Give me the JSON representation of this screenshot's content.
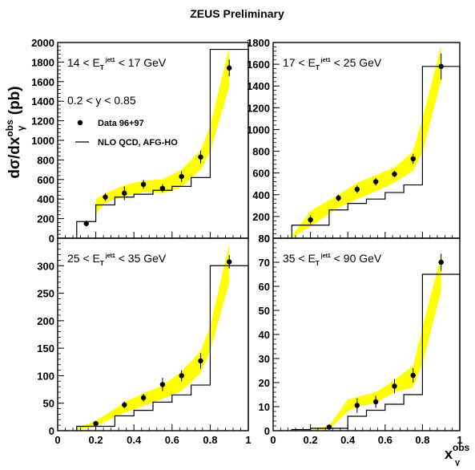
{
  "page": {
    "title": "ZEUS Preliminary",
    "ylabel_main": "dσ/dx",
    "ylabel_sup": "obs",
    "ylabel_sub": "γ",
    "ylabel_unit": " (pb)",
    "xlabel_main": "x",
    "xlabel_sup": "obs",
    "xlabel_sub": "γ",
    "legend": {
      "y_range": "0.2 < y < 0.85",
      "data_label": "Data 96+97",
      "nlo_label": "NLO QCD, AFG-HO"
    }
  },
  "chart_data": [
    {
      "type": "line",
      "panel": "top-left",
      "et_lo": "14 < E",
      "et_sub": "T",
      "et_sup": "jet1",
      "et_hi": " < 17 GeV",
      "xlim": [
        0,
        1
      ],
      "ylim": [
        0,
        2000
      ],
      "xticks": [],
      "yticks": [
        0,
        200,
        400,
        600,
        800,
        1000,
        1200,
        1400,
        1600,
        1800,
        2000
      ],
      "data": {
        "x": [
          0.15,
          0.25,
          0.35,
          0.45,
          0.55,
          0.65,
          0.75,
          0.9
        ],
        "y": [
          150,
          420,
          460,
          550,
          510,
          630,
          830,
          1740
        ],
        "err": [
          30,
          40,
          70,
          45,
          40,
          55,
          65,
          85
        ]
      },
      "nlo_hist": {
        "edges": [
          0.1,
          0.2,
          0.3,
          0.4,
          0.5,
          0.6,
          0.7,
          0.8,
          1.0
        ],
        "values": [
          170,
          340,
          420,
          450,
          490,
          530,
          620,
          1930
        ]
      },
      "band": {
        "x": [
          0.2,
          0.25,
          0.35,
          0.45,
          0.55,
          0.65,
          0.75,
          0.8,
          0.9
        ],
        "lo": [
          250,
          360,
          430,
          470,
          460,
          520,
          700,
          880,
          1550
        ],
        "hi": [
          400,
          460,
          540,
          590,
          600,
          700,
          900,
          1150,
          1950
        ]
      }
    },
    {
      "type": "line",
      "panel": "top-right",
      "et_lo": "17 < E",
      "et_sub": "T",
      "et_sup": "jet1",
      "et_hi": " < 25 GeV",
      "xlim": [
        0,
        1
      ],
      "ylim": [
        0,
        1800
      ],
      "xticks": [],
      "yticks": [
        0,
        200,
        400,
        600,
        800,
        1000,
        1200,
        1400,
        1600,
        1800
      ],
      "data": {
        "x": [
          0.2,
          0.35,
          0.45,
          0.55,
          0.65,
          0.75,
          0.9
        ],
        "y": [
          170,
          370,
          450,
          520,
          590,
          730,
          1580
        ],
        "err": [
          40,
          30,
          35,
          35,
          30,
          45,
          120
        ]
      },
      "nlo_hist": {
        "edges": [
          0.1,
          0.2,
          0.3,
          0.4,
          0.5,
          0.6,
          0.7,
          0.8,
          1.0
        ],
        "values": [
          120,
          120,
          260,
          320,
          360,
          420,
          490,
          1580
        ]
      },
      "band": {
        "x": [
          0.1,
          0.2,
          0.35,
          0.45,
          0.55,
          0.65,
          0.75,
          0.8,
          0.9
        ],
        "lo": [
          0,
          110,
          280,
          360,
          430,
          510,
          620,
          790,
          1450
        ],
        "hi": [
          20,
          250,
          400,
          510,
          580,
          650,
          800,
          1100,
          1770
        ]
      }
    },
    {
      "type": "line",
      "panel": "bottom-left",
      "et_lo": "25 < E",
      "et_sub": "T",
      "et_sup": "jet1",
      "et_hi": " < 35 GeV",
      "xlim": [
        0,
        1
      ],
      "ylim": [
        0,
        350
      ],
      "xticks": [
        0,
        0.2,
        0.4,
        0.6,
        0.8,
        1
      ],
      "yticks": [
        0,
        50,
        100,
        150,
        200,
        250,
        300
      ],
      "data": {
        "x": [
          0.2,
          0.35,
          0.45,
          0.55,
          0.65,
          0.75,
          0.9
        ],
        "y": [
          13,
          47,
          60,
          84,
          100,
          127,
          307
        ],
        "err": [
          3,
          6,
          7,
          12,
          10,
          14,
          12
        ]
      },
      "nlo_hist": {
        "edges": [
          0.1,
          0.2,
          0.3,
          0.4,
          0.5,
          0.6,
          0.7,
          0.8,
          1.0
        ],
        "values": [
          8,
          8,
          27,
          37,
          52,
          65,
          83,
          300
        ]
      },
      "band": {
        "x": [
          0.1,
          0.2,
          0.3,
          0.35,
          0.45,
          0.55,
          0.65,
          0.75,
          0.8,
          0.9
        ],
        "lo": [
          2,
          8,
          25,
          32,
          45,
          58,
          72,
          105,
          145,
          270
        ],
        "hi": [
          5,
          18,
          40,
          52,
          68,
          82,
          108,
          145,
          190,
          340
        ]
      }
    },
    {
      "type": "line",
      "panel": "bottom-right",
      "et_lo": "35 < E",
      "et_sub": "T",
      "et_sup": "jet1",
      "et_hi": " < 90 GeV",
      "xlim": [
        0,
        1
      ],
      "ylim": [
        0,
        80
      ],
      "xticks": [
        0,
        0.2,
        0.4,
        0.6,
        0.8,
        1
      ],
      "yticks": [
        0,
        10,
        20,
        30,
        40,
        50,
        60,
        70,
        80
      ],
      "data": {
        "x": [
          0.3,
          0.45,
          0.55,
          0.65,
          0.75,
          0.9
        ],
        "y": [
          1.5,
          10.5,
          12,
          18.5,
          23,
          70
        ],
        "err": [
          0.5,
          3,
          2.5,
          3,
          3,
          3.5
        ]
      },
      "nlo_hist": {
        "edges": [
          0.1,
          0.2,
          0.3,
          0.4,
          0.5,
          0.6,
          0.7,
          0.8,
          1.0
        ],
        "values": [
          0.5,
          1,
          1,
          6,
          8.5,
          11,
          15,
          65
        ]
      },
      "band": {
        "x": [
          0.2,
          0.3,
          0.4,
          0.45,
          0.55,
          0.65,
          0.75,
          0.8,
          0.9
        ],
        "lo": [
          0.2,
          0.5,
          8,
          10,
          11.5,
          16,
          18,
          28,
          58
        ],
        "hi": [
          0.6,
          2,
          13,
          14,
          16,
          21,
          27,
          43,
          73
        ]
      }
    }
  ]
}
